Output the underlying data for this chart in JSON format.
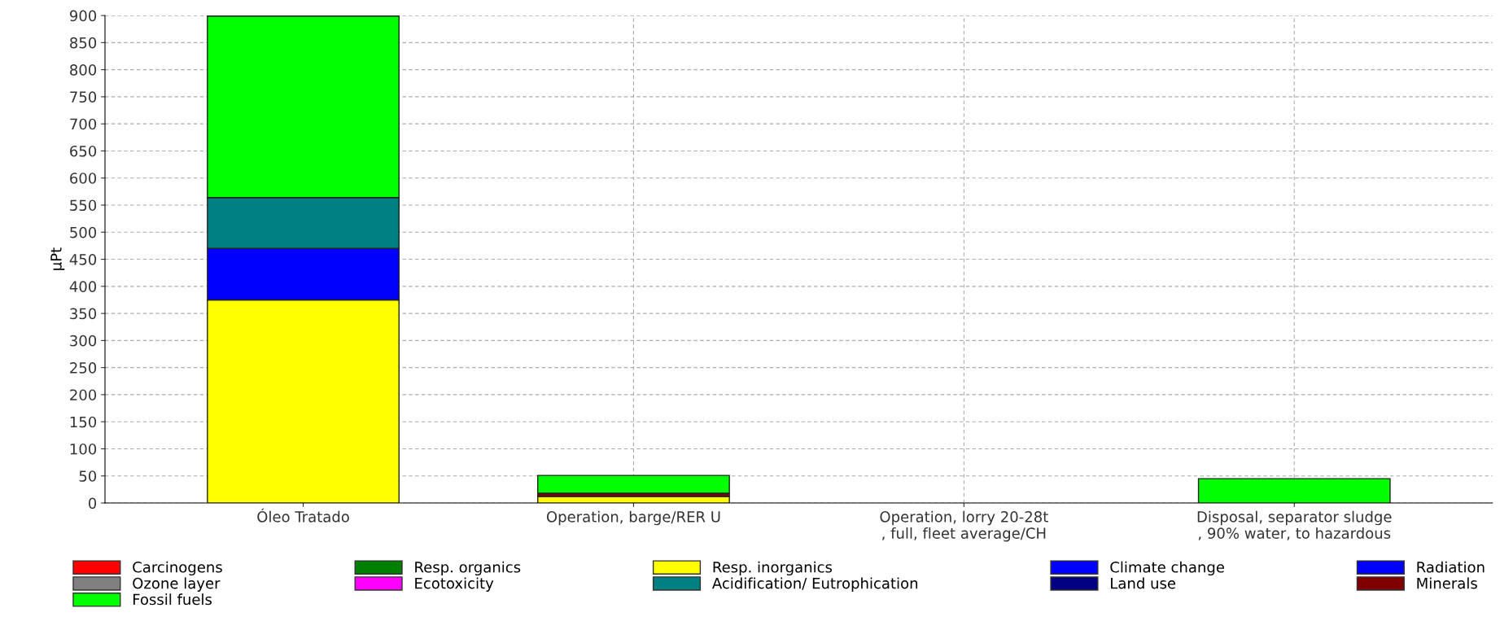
{
  "chart_data": {
    "type": "bar",
    "stacked": true,
    "ylabel": "µPt",
    "categories": [
      "Óleo Tratado",
      "Operation, barge/RER U",
      "Operation, lorry 20-28t\n, full, fleet average/CH",
      "Disposal, separator sludge\n, 90% water, to hazardous"
    ],
    "series": [
      {
        "name": "Carcinogens",
        "color": "#ff0000",
        "values": [
          null,
          0,
          0,
          0
        ]
      },
      {
        "name": "Resp. organics",
        "color": "#008000",
        "values": [
          0,
          0,
          0,
          0
        ]
      },
      {
        "name": "Resp. inorganics",
        "color": "#ffff00",
        "values": [
          375,
          12,
          0,
          0
        ]
      },
      {
        "name": "Climate change",
        "color": "#0000ff",
        "values": [
          95,
          0,
          0,
          0
        ]
      },
      {
        "name": "Radiation",
        "color": "#0000ff",
        "values": [
          0,
          0,
          0,
          0
        ]
      },
      {
        "name": "Ozone layer",
        "color": "#808080",
        "values": [
          0,
          0,
          0,
          0
        ]
      },
      {
        "name": "Ecotoxicity",
        "color": "#ff00ff",
        "values": [
          0,
          0,
          0,
          0
        ]
      },
      {
        "name": "Acidification/ Eutrophication",
        "color": "#008080",
        "values": [
          94,
          0,
          0,
          0
        ]
      },
      {
        "name": "Land use",
        "color": "#000080",
        "values": [
          0,
          0,
          0,
          0
        ]
      },
      {
        "name": "Minerals",
        "color": "#800000",
        "values": [
          null,
          6,
          0,
          null
        ]
      },
      {
        "name": "Fossil fuels",
        "color": "#00ff00",
        "values": [
          335,
          33,
          0,
          45
        ]
      }
    ],
    "ylim": [
      0,
      900
    ],
    "yticks": [
      0,
      50,
      100,
      150,
      200,
      250,
      300,
      350,
      400,
      450,
      500,
      550,
      600,
      650,
      700,
      750,
      800,
      850,
      900
    ],
    "grid": true,
    "legend": "bottom"
  }
}
